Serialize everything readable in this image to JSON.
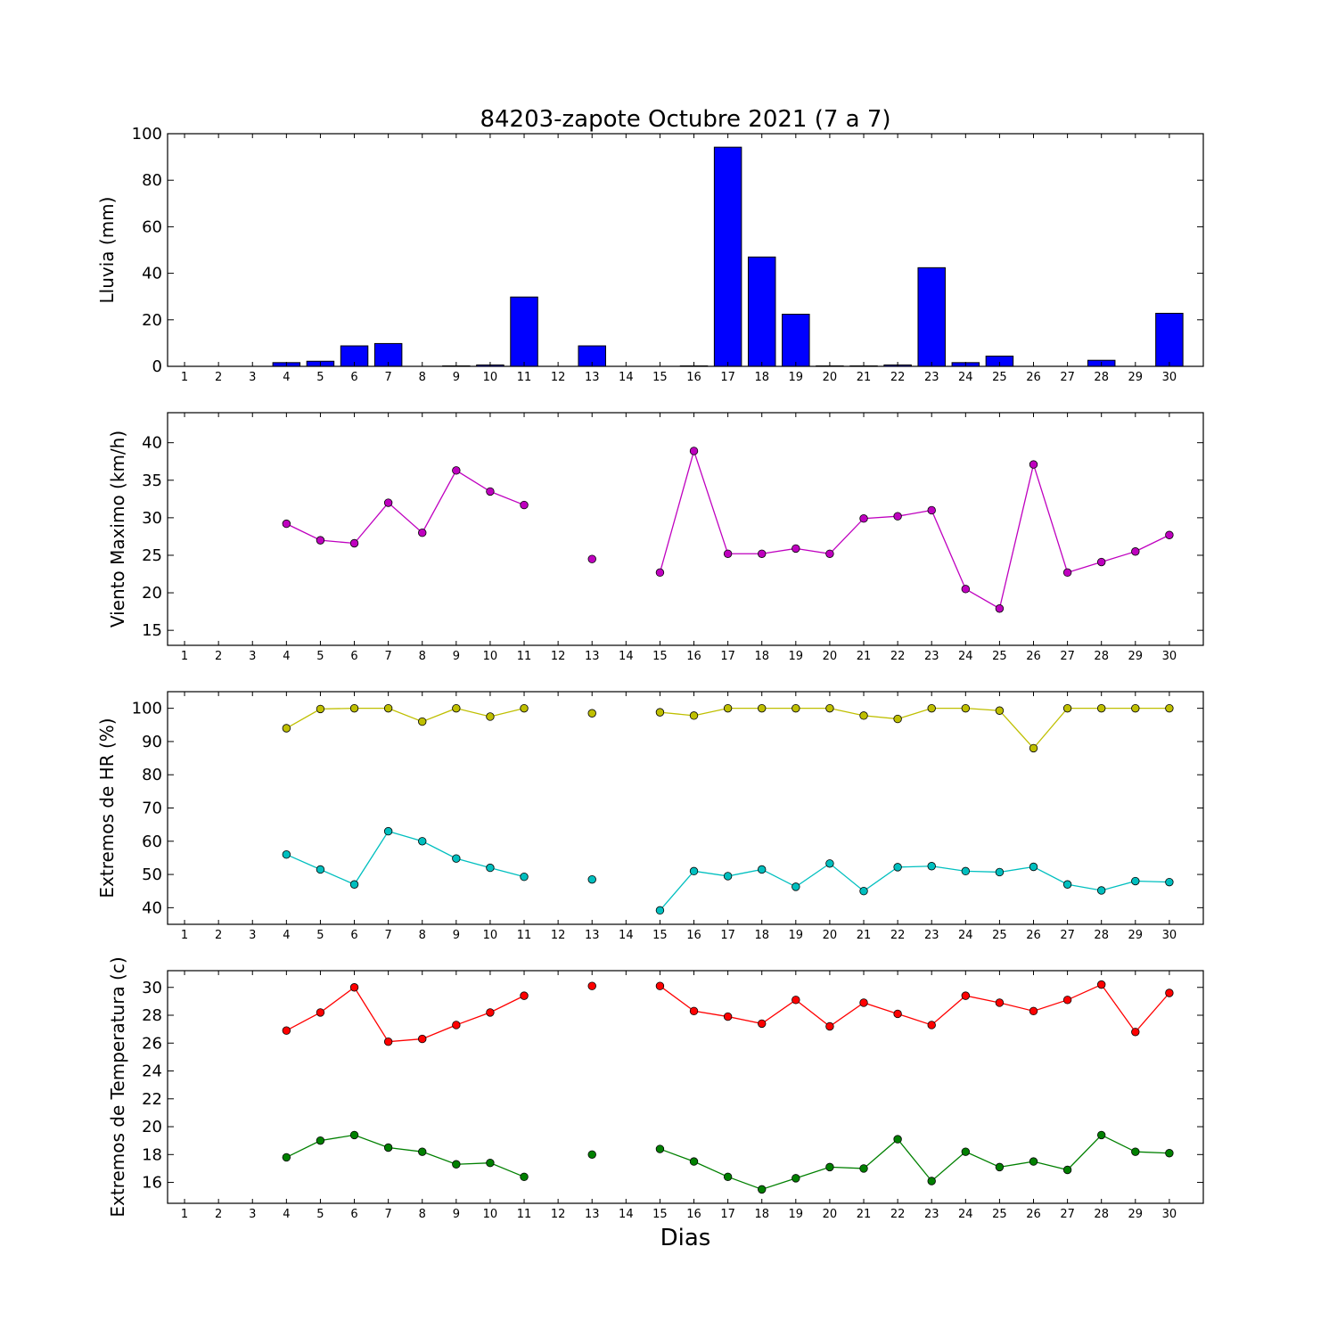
{
  "chart_data": [
    {
      "type": "bar",
      "title": "84203-zapote Octubre 2021  (7 a 7)",
      "xlabel": "",
      "ylabel": "Lluvia (mm)",
      "ylim": [
        0,
        100
      ],
      "yticks": [
        "0",
        "20",
        "40",
        "60",
        "80",
        "100"
      ],
      "categories": [
        "1",
        "2",
        "3",
        "4",
        "5",
        "6",
        "7",
        "8",
        "9",
        "10",
        "11",
        "12",
        "13",
        "14",
        "15",
        "16",
        "17",
        "18",
        "19",
        "20",
        "21",
        "22",
        "23",
        "24",
        "25",
        "26",
        "27",
        "28",
        "29",
        "30"
      ],
      "values": [
        0,
        0,
        0,
        1.6,
        2.2,
        8.8,
        9.8,
        0,
        0.2,
        0.6,
        29.8,
        0,
        8.8,
        0,
        0,
        0.2,
        94.2,
        47.0,
        22.4,
        0.2,
        0.2,
        0.6,
        42.4,
        1.6,
        4.4,
        0,
        0,
        2.6,
        0,
        22.8
      ],
      "color": "#0000ff"
    },
    {
      "type": "line",
      "ylabel": "Viento Maximo (km/h)",
      "ylim": [
        13,
        44
      ],
      "yticks": [
        "15",
        "20",
        "25",
        "30",
        "35",
        "40"
      ],
      "categories": [
        "1",
        "2",
        "3",
        "4",
        "5",
        "6",
        "7",
        "8",
        "9",
        "10",
        "11",
        "12",
        "13",
        "14",
        "15",
        "16",
        "17",
        "18",
        "19",
        "20",
        "21",
        "22",
        "23",
        "24",
        "25",
        "26",
        "27",
        "28",
        "29",
        "30"
      ],
      "series": [
        {
          "values": [
            null,
            null,
            null,
            29.2,
            27.0,
            26.6,
            32.0,
            28.0,
            36.3,
            33.5,
            31.7,
            null,
            24.5,
            null,
            22.7,
            38.9,
            25.2,
            25.2,
            25.9,
            25.2,
            29.9,
            30.2,
            31.0,
            20.5,
            17.9,
            37.1,
            22.7,
            24.1,
            25.5,
            27.7
          ],
          "color": "#bf00bf"
        }
      ]
    },
    {
      "type": "line",
      "ylabel": "Extremos de HR (%)",
      "ylim": [
        35,
        105
      ],
      "yticks": [
        "40",
        "50",
        "60",
        "70",
        "80",
        "90",
        "100"
      ],
      "categories": [
        "1",
        "2",
        "3",
        "4",
        "5",
        "6",
        "7",
        "8",
        "9",
        "10",
        "11",
        "12",
        "13",
        "14",
        "15",
        "16",
        "17",
        "18",
        "19",
        "20",
        "21",
        "22",
        "23",
        "24",
        "25",
        "26",
        "27",
        "28",
        "29",
        "30"
      ],
      "series": [
        {
          "values": [
            null,
            null,
            null,
            94.0,
            99.8,
            100,
            100,
            96.0,
            100,
            97.5,
            100,
            null,
            98.5,
            null,
            98.8,
            97.8,
            100,
            100,
            100,
            100,
            97.8,
            96.8,
            100,
            100,
            99.3,
            88.0,
            100,
            100,
            100,
            100
          ],
          "color": "#bfbf00"
        },
        {
          "values": [
            null,
            null,
            null,
            56.0,
            51.5,
            47.0,
            63.0,
            60.0,
            54.8,
            52.0,
            49.3,
            null,
            48.5,
            null,
            39.2,
            51.0,
            49.5,
            51.5,
            46.3,
            53.3,
            45.0,
            52.2,
            52.5,
            51.0,
            50.7,
            52.3,
            47.0,
            45.2,
            48.0,
            47.7
          ],
          "color": "#00bfbf"
        }
      ]
    },
    {
      "type": "line",
      "ylabel": "Extremos de Temperatura (c)",
      "xlabel": "Dias",
      "ylim": [
        14.5,
        31.2
      ],
      "yticks": [
        "16",
        "18",
        "20",
        "22",
        "24",
        "26",
        "28",
        "30"
      ],
      "categories": [
        "1",
        "2",
        "3",
        "4",
        "5",
        "6",
        "7",
        "8",
        "9",
        "10",
        "11",
        "12",
        "13",
        "14",
        "15",
        "16",
        "17",
        "18",
        "19",
        "20",
        "21",
        "22",
        "23",
        "24",
        "25",
        "26",
        "27",
        "28",
        "29",
        "30"
      ],
      "series": [
        {
          "values": [
            null,
            null,
            null,
            26.9,
            28.2,
            30.0,
            26.1,
            26.3,
            27.3,
            28.2,
            29.4,
            null,
            30.1,
            null,
            30.1,
            28.3,
            27.9,
            27.4,
            29.1,
            27.2,
            28.9,
            28.1,
            27.3,
            29.4,
            28.9,
            28.3,
            29.1,
            30.2,
            26.8,
            29.6
          ],
          "color": "#ff0000"
        },
        {
          "values": [
            null,
            null,
            null,
            17.8,
            19.0,
            19.4,
            18.5,
            18.2,
            17.3,
            17.4,
            16.4,
            null,
            18.0,
            null,
            18.4,
            17.5,
            16.4,
            15.5,
            16.3,
            17.1,
            17.0,
            19.1,
            16.1,
            18.2,
            17.1,
            17.5,
            16.9,
            19.4,
            18.2,
            18.1
          ],
          "color": "#008000"
        }
      ]
    }
  ]
}
